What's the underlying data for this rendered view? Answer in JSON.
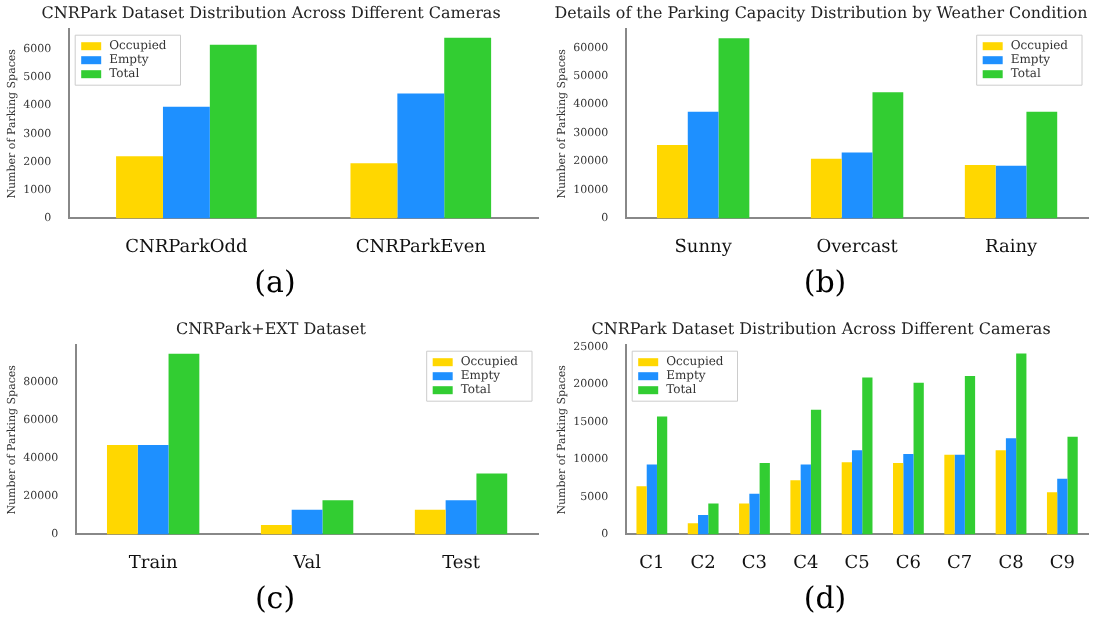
{
  "chart_data": [
    {
      "type": "bar",
      "title": "CNRPark Dataset Distribution Across Different Cameras",
      "ylabel": "Number of Parking Spaces",
      "categories": [
        "CNRParkOdd",
        "CNRParkEven"
      ],
      "series": [
        {
          "name": "Occupied",
          "color": "#ffd700",
          "values": [
            2200,
            1950
          ]
        },
        {
          "name": "Empty",
          "color": "#1e90ff",
          "values": [
            3950,
            4420
          ]
        },
        {
          "name": "Total",
          "color": "#32cd32",
          "values": [
            6150,
            6400
          ]
        }
      ],
      "ylim": [
        0,
        6700
      ],
      "yticks": [
        0,
        1000,
        2000,
        3000,
        4000,
        5000,
        6000
      ],
      "grid": false,
      "legend": "top left",
      "annotations": [
        "(a)"
      ]
    },
    {
      "type": "bar",
      "title": "Details of the Parking Capacity Distribution by Weather Condition",
      "ylabel": "Number of Parking Spaces",
      "categories": [
        "Sunny",
        "Overcast",
        "Rainy"
      ],
      "series": [
        {
          "name": "Occupied",
          "color": "#ffd700",
          "values": [
            25800,
            21000,
            18800
          ]
        },
        {
          "name": "Empty",
          "color": "#1e90ff",
          "values": [
            37500,
            23200,
            18500
          ]
        },
        {
          "name": "Total",
          "color": "#32cd32",
          "values": [
            63300,
            44300,
            37500
          ]
        }
      ],
      "ylim": [
        0,
        66500
      ],
      "yticks": [
        0,
        10000,
        20000,
        30000,
        40000,
        50000,
        60000
      ],
      "grid": false,
      "legend": "top right",
      "annotations": [
        "(b)"
      ]
    },
    {
      "type": "bar",
      "title": "CNRPark+EXT Dataset",
      "ylabel": "Number of Parking Spaces",
      "categories": [
        "Train",
        "Val",
        "Test"
      ],
      "series": [
        {
          "name": "Occupied",
          "color": "#ffd700",
          "values": [
            47000,
            5000,
            13000
          ]
        },
        {
          "name": "Empty",
          "color": "#1e90ff",
          "values": [
            47000,
            13000,
            18000
          ]
        },
        {
          "name": "Total",
          "color": "#32cd32",
          "values": [
            95000,
            18000,
            32000
          ]
        }
      ],
      "ylim": [
        0,
        99500
      ],
      "yticks": [
        0,
        20000,
        40000,
        60000,
        80000
      ],
      "grid": false,
      "legend": "top right",
      "annotations": [
        "(c)"
      ]
    },
    {
      "type": "bar",
      "title": "CNRPark Dataset Distribution Across Different Cameras",
      "ylabel": "Number of Parking Spaces",
      "categories": [
        "C1",
        "C2",
        "C3",
        "C4",
        "C5",
        "C6",
        "C7",
        "C8",
        "C9"
      ],
      "series": [
        {
          "name": "Occupied",
          "color": "#ffd700",
          "values": [
            6400,
            1500,
            4100,
            7200,
            9600,
            9500,
            10600,
            11200,
            5600
          ]
        },
        {
          "name": "Empty",
          "color": "#1e90ff",
          "values": [
            9300,
            2600,
            5400,
            9300,
            11200,
            10700,
            10600,
            12800,
            7400
          ]
        },
        {
          "name": "Total",
          "color": "#32cd32",
          "values": [
            15700,
            4100,
            9500,
            16600,
            20900,
            20200,
            21100,
            24100,
            13000
          ]
        }
      ],
      "ylim": [
        0,
        25200
      ],
      "yticks": [
        0,
        5000,
        10000,
        15000,
        20000,
        25000
      ],
      "grid": false,
      "legend": "top left",
      "annotations": [
        "(d)"
      ]
    }
  ]
}
